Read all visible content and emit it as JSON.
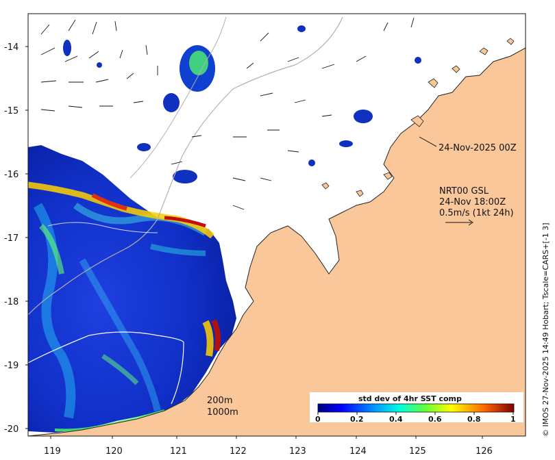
{
  "map": {
    "lat_labels": [
      "-14",
      "-15",
      "-16",
      "-17",
      "-18",
      "-19",
      "-20"
    ],
    "lon_labels": [
      "119",
      "120",
      "121",
      "122",
      "123",
      "124",
      "125",
      "126"
    ],
    "contours": {
      "shallow": "200m",
      "deep": "1000m"
    },
    "time_label": "24-Nov-2025 00Z",
    "current_title": "NRT00 GSL",
    "current_time": "24-Nov 18:00Z",
    "current_scale": "0.5m/s (1kt 24h)",
    "colorbar": {
      "title": "std dev of 4hr SST comp",
      "ticks": [
        "0",
        "0.2",
        "0.4",
        "0.6",
        "0.8",
        "1"
      ],
      "colormap": "jet"
    },
    "credit": "© IMOS 27-Nov-2025 14:49 Hobart; Tscale=CARS+[-1 3]",
    "colors": {
      "land": "#f9c79a",
      "ocean_missing": "#ffffff",
      "contour_200": "#ffffff",
      "contour_1000": "#b0b0b0"
    }
  }
}
